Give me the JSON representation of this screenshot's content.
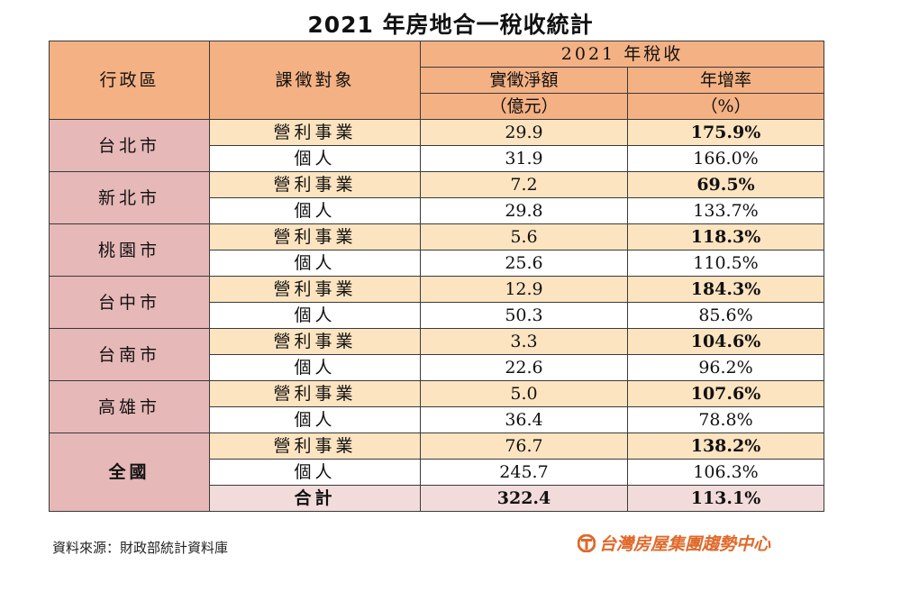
{
  "title": "2021 年房地合一稅收統計",
  "headers": {
    "region": "行政區",
    "tax_target": "課徵對象",
    "group": "2021 年稅收",
    "net_amount_1": "實徵淨額",
    "net_amount_2": "（億元）",
    "growth_1": "年增率",
    "growth_2": "（%）"
  },
  "rows": [
    {
      "region": "台北市",
      "biz": {
        "label": "營利事業",
        "amount": "29.9",
        "growth": "175.9%"
      },
      "ind": {
        "label": "個人",
        "amount": "31.9",
        "growth": "166.0%"
      }
    },
    {
      "region": "新北市",
      "biz": {
        "label": "營利事業",
        "amount": "7.2",
        "growth": "69.5%"
      },
      "ind": {
        "label": "個人",
        "amount": "29.8",
        "growth": "133.7%"
      }
    },
    {
      "region": "桃園市",
      "biz": {
        "label": "營利事業",
        "amount": "5.6",
        "growth": "118.3%"
      },
      "ind": {
        "label": "個人",
        "amount": "25.6",
        "growth": "110.5%"
      }
    },
    {
      "region": "台中市",
      "biz": {
        "label": "營利事業",
        "amount": "12.9",
        "growth": "184.3%"
      },
      "ind": {
        "label": "個人",
        "amount": "50.3",
        "growth": "85.6%"
      }
    },
    {
      "region": "台南市",
      "biz": {
        "label": "營利事業",
        "amount": "3.3",
        "growth": "104.6%"
      },
      "ind": {
        "label": "個人",
        "amount": "22.6",
        "growth": "96.2%"
      }
    },
    {
      "region": "高雄市",
      "biz": {
        "label": "營利事業",
        "amount": "5.0",
        "growth": "107.6%"
      },
      "ind": {
        "label": "個人",
        "amount": "36.4",
        "growth": "78.8%"
      }
    }
  ],
  "national": {
    "region": "全國",
    "biz": {
      "label": "營利事業",
      "amount": "76.7",
      "growth": "138.2%"
    },
    "ind": {
      "label": "個人",
      "amount": "245.7",
      "growth": "106.3%"
    },
    "total": {
      "label": "合計",
      "amount": "322.4",
      "growth": "113.1%"
    }
  },
  "source": "資料來源：財政部統計資料庫",
  "logo_text": "台灣房屋集團趨勢中心",
  "colors": {
    "header_bg": "#f4b183",
    "region_bg": "#e6b8b7",
    "business_row_bg": "#fce4c0",
    "total_row_bg": "#f2dcdb",
    "logo": "#e0692a"
  },
  "chart_data": {
    "type": "table",
    "title": "2021 年房地合一稅收統計",
    "columns": [
      "行政區",
      "課徵對象",
      "實徵淨額（億元）",
      "年增率（%）"
    ],
    "rows": [
      [
        "台北市",
        "營利事業",
        29.9,
        175.9
      ],
      [
        "台北市",
        "個人",
        31.9,
        166.0
      ],
      [
        "新北市",
        "營利事業",
        7.2,
        69.5
      ],
      [
        "新北市",
        "個人",
        29.8,
        133.7
      ],
      [
        "桃園市",
        "營利事業",
        5.6,
        118.3
      ],
      [
        "桃園市",
        "個人",
        25.6,
        110.5
      ],
      [
        "台中市",
        "營利事業",
        12.9,
        184.3
      ],
      [
        "台中市",
        "個人",
        50.3,
        85.6
      ],
      [
        "台南市",
        "營利事業",
        3.3,
        104.6
      ],
      [
        "台南市",
        "個人",
        22.6,
        96.2
      ],
      [
        "高雄市",
        "營利事業",
        5.0,
        107.6
      ],
      [
        "高雄市",
        "個人",
        36.4,
        78.8
      ],
      [
        "全國",
        "營利事業",
        76.7,
        138.2
      ],
      [
        "全國",
        "個人",
        245.7,
        106.3
      ],
      [
        "全國",
        "合計",
        322.4,
        113.1
      ]
    ]
  }
}
